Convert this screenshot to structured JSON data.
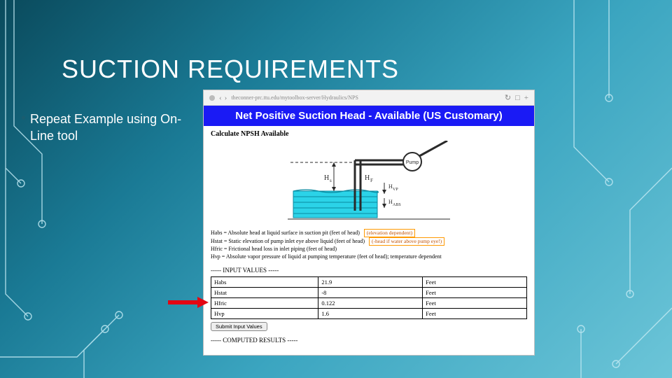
{
  "title": "SUCTION REQUIREMENTS",
  "bullet_text": "Repeat Example using On-Line tool",
  "browser": {
    "url": "theconner-prc.ttu.edu/mytoolbox-server/Hydraulics/NPS",
    "band_title": "Net Positive Suction Head - Available (US Customary)",
    "subhead": "Calculate NPSH Available",
    "definitions": [
      "Habs = Absolute head at liquid surface in suction pit (feet of head)",
      "Hstat = Static elevation of pump inlet eye above liquid (feet of head)",
      "Hfric = Frictional head loss in inlet piping (feet of head)",
      "Hvp = Absolute vapor pressure of liquid at pumping temperature (feet of head); temperature dependent"
    ],
    "orange_notes": [
      "(elevation dependent)",
      "(-head if water above pump eye!)"
    ],
    "input_section": "----- INPUT VALUES -----",
    "computed_section": "----- COMPUTED RESULTS -----",
    "submit_label": "Submit Input Values",
    "diagram": {
      "water_fill": "#2bd3e8",
      "water_stroke": "#0a8aa0",
      "ink": "#2a2a2a",
      "labels": {
        "hs": "Hs",
        "hf": "HF",
        "hvp": "HVP",
        "habs": "HABS",
        "pump": "Pump"
      }
    },
    "input_rows": [
      {
        "key": "Habs",
        "val": "21.9",
        "unit": "Feet"
      },
      {
        "key": "Hstat",
        "val": "-8",
        "unit": "Feet"
      },
      {
        "key": "Hfric",
        "val": "0.122",
        "unit": "Feet"
      },
      {
        "key": "Hvp",
        "val": "1.6",
        "unit": "Feet"
      }
    ]
  },
  "arrow_color": "#e30613"
}
